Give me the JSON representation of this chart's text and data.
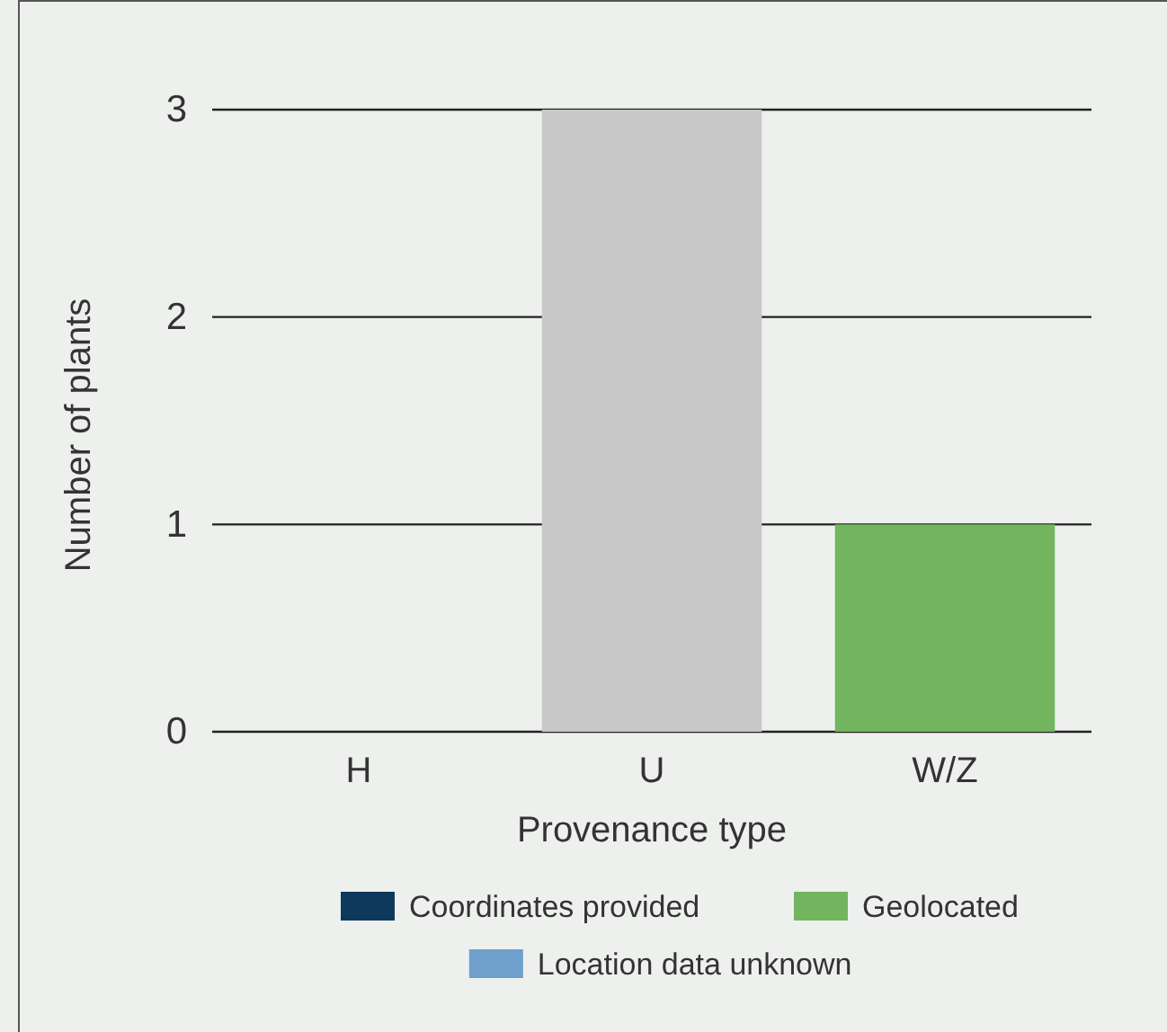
{
  "chart_data": {
    "type": "bar",
    "xlabel": "Provenance type",
    "ylabel": "Number of plants",
    "categories": [
      "H",
      "U",
      "W/Z"
    ],
    "ylim": [
      0,
      3
    ],
    "yticks": [
      0,
      1,
      2,
      3
    ],
    "grid": "y",
    "legend": "bottom",
    "series": [
      {
        "name": "Coordinates provided",
        "color": "#0d3a5c",
        "values": [
          0,
          0,
          0
        ]
      },
      {
        "name": "Geolocated",
        "color": "#72b55e",
        "values": [
          0,
          0,
          1
        ]
      },
      {
        "name": "Location data unknown",
        "color": "#6fa0cc",
        "values": [
          0,
          0,
          0
        ]
      },
      {
        "color": "#c8c8c8",
        "values": [
          0,
          3,
          0
        ]
      }
    ]
  }
}
